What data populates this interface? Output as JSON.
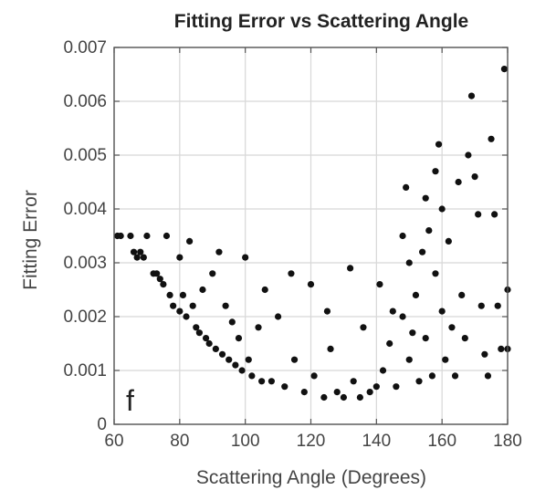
{
  "chart_data": {
    "type": "scatter",
    "title": "Fitting Error vs Scattering Angle",
    "xlabel": "Scattering Angle (Degrees)",
    "ylabel": "Fitting Error",
    "panel_label": "f",
    "xlim": [
      60,
      180
    ],
    "ylim": [
      0,
      0.007
    ],
    "xticks": [
      60,
      80,
      100,
      120,
      140,
      160,
      180
    ],
    "xtick_labels": [
      "60",
      "80",
      "100",
      "120",
      "140",
      "160",
      "180"
    ],
    "yticks": [
      0,
      0.001,
      0.002,
      0.003,
      0.004,
      0.005,
      0.006,
      0.007
    ],
    "ytick_labels": [
      "0",
      "0.001",
      "0.002",
      "0.003",
      "0.004",
      "0.005",
      "0.006",
      "0.007"
    ],
    "grid": true,
    "legend": "none",
    "marker_color": "#111111",
    "series": [
      {
        "points": [
          [
            61,
            0.0035
          ],
          [
            62,
            0.0035
          ],
          [
            65,
            0.0035
          ],
          [
            66,
            0.0032
          ],
          [
            67,
            0.0031
          ],
          [
            68,
            0.0032
          ],
          [
            69,
            0.0031
          ],
          [
            70,
            0.0035
          ],
          [
            72,
            0.0028
          ],
          [
            73,
            0.0028
          ],
          [
            74,
            0.0027
          ],
          [
            75,
            0.0026
          ],
          [
            76,
            0.0035
          ],
          [
            77,
            0.0024
          ],
          [
            78,
            0.0022
          ],
          [
            80,
            0.0031
          ],
          [
            80,
            0.0021
          ],
          [
            81,
            0.0024
          ],
          [
            82,
            0.002
          ],
          [
            83,
            0.0034
          ],
          [
            84,
            0.0022
          ],
          [
            85,
            0.0018
          ],
          [
            86,
            0.0017
          ],
          [
            87,
            0.0025
          ],
          [
            88,
            0.0016
          ],
          [
            89,
            0.0015
          ],
          [
            90,
            0.0028
          ],
          [
            91,
            0.0014
          ],
          [
            92,
            0.0032
          ],
          [
            93,
            0.0013
          ],
          [
            94,
            0.0022
          ],
          [
            95,
            0.0012
          ],
          [
            96,
            0.0019
          ],
          [
            97,
            0.0011
          ],
          [
            98,
            0.0016
          ],
          [
            99,
            0.001
          ],
          [
            100,
            0.0031
          ],
          [
            101,
            0.0012
          ],
          [
            102,
            0.0009
          ],
          [
            104,
            0.0018
          ],
          [
            105,
            0.0008
          ],
          [
            106,
            0.0025
          ],
          [
            108,
            0.0008
          ],
          [
            110,
            0.002
          ],
          [
            112,
            0.0007
          ],
          [
            114,
            0.0028
          ],
          [
            115,
            0.0012
          ],
          [
            118,
            0.0006
          ],
          [
            120,
            0.0026
          ],
          [
            121,
            0.0009
          ],
          [
            124,
            0.0005
          ],
          [
            125,
            0.0021
          ],
          [
            126,
            0.0014
          ],
          [
            128,
            0.0006
          ],
          [
            130,
            0.0005
          ],
          [
            132,
            0.0029
          ],
          [
            133,
            0.0008
          ],
          [
            135,
            0.0005
          ],
          [
            136,
            0.0018
          ],
          [
            138,
            0.0006
          ],
          [
            140,
            0.0007
          ],
          [
            141,
            0.0026
          ],
          [
            142,
            0.001
          ],
          [
            144,
            0.0015
          ],
          [
            145,
            0.0021
          ],
          [
            146,
            0.0007
          ],
          [
            148,
            0.0035
          ],
          [
            148,
            0.002
          ],
          [
            149,
            0.0044
          ],
          [
            150,
            0.003
          ],
          [
            150,
            0.0012
          ],
          [
            151,
            0.0017
          ],
          [
            152,
            0.0024
          ],
          [
            153,
            0.0008
          ],
          [
            154,
            0.0032
          ],
          [
            155,
            0.0042
          ],
          [
            155,
            0.0016
          ],
          [
            156,
            0.0036
          ],
          [
            157,
            0.0009
          ],
          [
            158,
            0.0047
          ],
          [
            158,
            0.0028
          ],
          [
            159,
            0.0052
          ],
          [
            160,
            0.004
          ],
          [
            160,
            0.0021
          ],
          [
            161,
            0.0012
          ],
          [
            162,
            0.0034
          ],
          [
            163,
            0.0018
          ],
          [
            164,
            0.0009
          ],
          [
            165,
            0.0045
          ],
          [
            166,
            0.0024
          ],
          [
            167,
            0.0016
          ],
          [
            168,
            0.005
          ],
          [
            169,
            0.0061
          ],
          [
            170,
            0.0046
          ],
          [
            171,
            0.0039
          ],
          [
            172,
            0.0022
          ],
          [
            173,
            0.0013
          ],
          [
            174,
            0.0009
          ],
          [
            175,
            0.0053
          ],
          [
            176,
            0.0039
          ],
          [
            177,
            0.0022
          ],
          [
            178,
            0.0014
          ],
          [
            179,
            0.0066
          ],
          [
            180,
            0.0025
          ],
          [
            180,
            0.0014
          ]
        ]
      }
    ]
  }
}
